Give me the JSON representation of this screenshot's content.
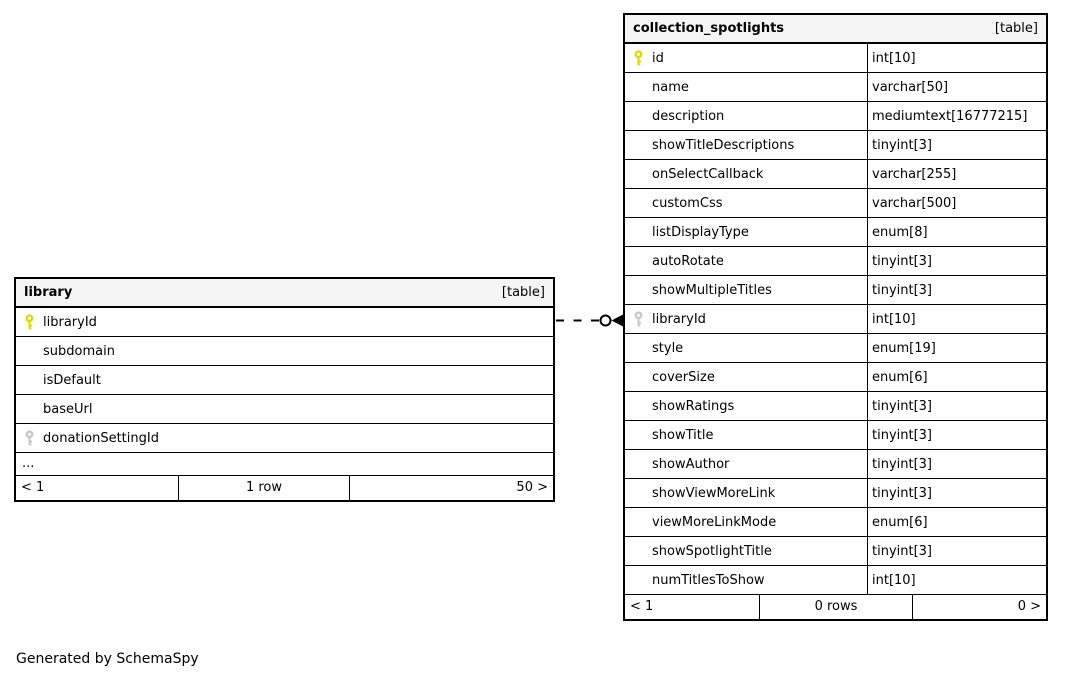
{
  "footer_note": "Generated by SchemaSpy",
  "colors": {
    "primary_key": "#dedb00",
    "foreign_key": "#c9c9c9",
    "header_bg": "#f5f5f5",
    "border": "#000000"
  },
  "icons": {
    "primary_key_icon": "yellow key glyph",
    "foreign_key_icon": "gray key glyph"
  },
  "relationship": {
    "from": "library.libraryId",
    "to": "collection_spotlights.libraryId",
    "line_style": "dashed",
    "end_markers": "open-circle + filled-arrowhead at child table"
  },
  "tables": [
    {
      "id": "library",
      "title": "library",
      "tag": "[table]",
      "has_types": false,
      "columns": [
        {
          "name": "libraryId",
          "key": "primary"
        },
        {
          "name": "subdomain"
        },
        {
          "name": "isDefault"
        },
        {
          "name": "baseUrl"
        },
        {
          "name": "donationSettingId",
          "key": "foreign"
        }
      ],
      "ellipsis": "...",
      "footer": {
        "left": "< 1",
        "center": "1 row",
        "right": "50 >"
      }
    },
    {
      "id": "collection_spotlights",
      "title": "collection_spotlights",
      "tag": "[table]",
      "has_types": true,
      "columns": [
        {
          "name": "id",
          "type": "int[10]",
          "key": "primary"
        },
        {
          "name": "name",
          "type": "varchar[50]"
        },
        {
          "name": "description",
          "type": "mediumtext[16777215]"
        },
        {
          "name": "showTitleDescriptions",
          "type": "tinyint[3]"
        },
        {
          "name": "onSelectCallback",
          "type": "varchar[255]"
        },
        {
          "name": "customCss",
          "type": "varchar[500]"
        },
        {
          "name": "listDisplayType",
          "type": "enum[8]"
        },
        {
          "name": "autoRotate",
          "type": "tinyint[3]"
        },
        {
          "name": "showMultipleTitles",
          "type": "tinyint[3]"
        },
        {
          "name": "libraryId",
          "type": "int[10]",
          "key": "foreign"
        },
        {
          "name": "style",
          "type": "enum[19]"
        },
        {
          "name": "coverSize",
          "type": "enum[6]"
        },
        {
          "name": "showRatings",
          "type": "tinyint[3]"
        },
        {
          "name": "showTitle",
          "type": "tinyint[3]"
        },
        {
          "name": "showAuthor",
          "type": "tinyint[3]"
        },
        {
          "name": "showViewMoreLink",
          "type": "tinyint[3]"
        },
        {
          "name": "viewMoreLinkMode",
          "type": "enum[6]"
        },
        {
          "name": "showSpotlightTitle",
          "type": "tinyint[3]"
        },
        {
          "name": "numTitlesToShow",
          "type": "int[10]"
        }
      ],
      "footer": {
        "left": "< 1",
        "center": "0 rows",
        "right": "0 >"
      }
    }
  ]
}
